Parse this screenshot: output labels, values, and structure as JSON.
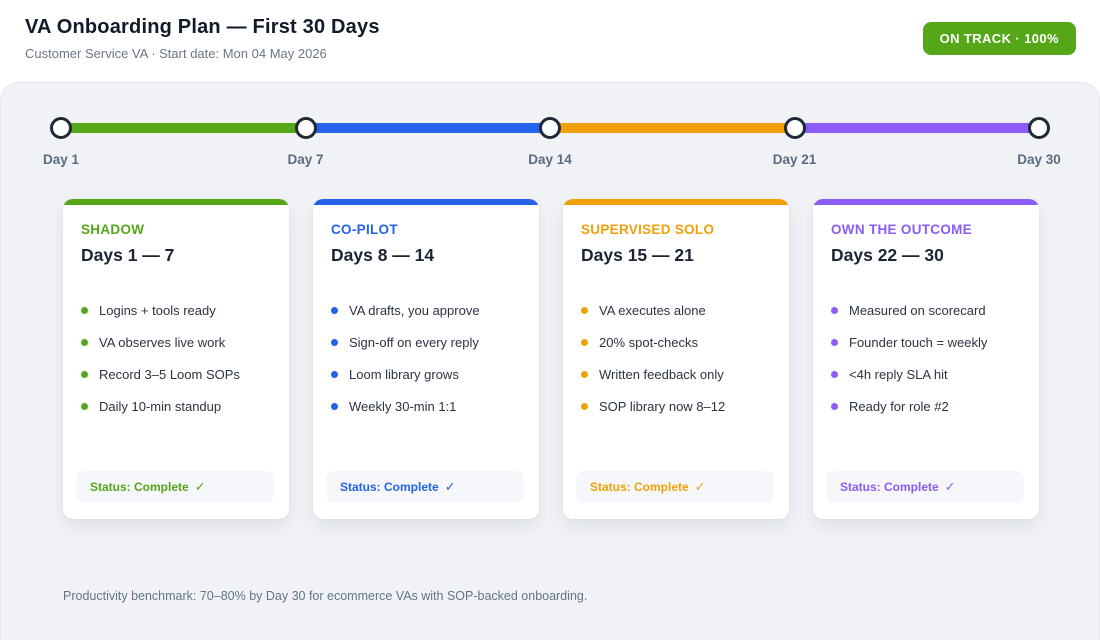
{
  "header": {
    "title": "VA Onboarding Plan — First 30 Days",
    "subtitle": "Customer Service VA · Start date: Mon 04 May 2026",
    "badge_label": "ON TRACK · 100%",
    "badge_color": "#55a718"
  },
  "timeline": {
    "milestones": [
      "Day 1",
      "Day 7",
      "Day 14",
      "Day 21",
      "Day 30"
    ],
    "segment_colors": [
      "#55a718",
      "#2563eb",
      "#f1a008",
      "#8b5cf6"
    ],
    "node_border_color": "#1f2937"
  },
  "phases": [
    {
      "name": "SHADOW",
      "days": "Days 1 — 7",
      "color": "#55a718",
      "items": [
        "Logins + tools ready",
        "VA observes live work",
        "Record 3–5 Loom SOPs",
        "Daily 10-min standup"
      ],
      "status_label": "Status: Complete",
      "check": "✓"
    },
    {
      "name": "CO-PILOT",
      "days": "Days 8 — 14",
      "color": "#2563eb",
      "items": [
        "VA drafts, you approve",
        "Sign-off on every reply",
        "Loom library grows",
        "Weekly 30-min 1:1"
      ],
      "status_label": "Status: Complete",
      "check": "✓"
    },
    {
      "name": "SUPERVISED SOLO",
      "days": "Days 15 — 21",
      "color": "#f1a008",
      "items": [
        "VA executes alone",
        "20% spot-checks",
        "Written feedback only",
        "SOP library now 8–12"
      ],
      "status_label": "Status: Complete",
      "check": "✓"
    },
    {
      "name": "OWN THE OUTCOME",
      "days": "Days 22 — 30",
      "color": "#8b5cf6",
      "items": [
        "Measured on scorecard",
        "Founder touch = weekly",
        "<4h reply SLA hit",
        "Ready for role #2"
      ],
      "status_label": "Status: Complete",
      "check": "✓"
    }
  ],
  "footer": {
    "note": "Productivity benchmark: 70–80% by Day 30 for ecommerce VAs with SOP-backed onboarding."
  }
}
